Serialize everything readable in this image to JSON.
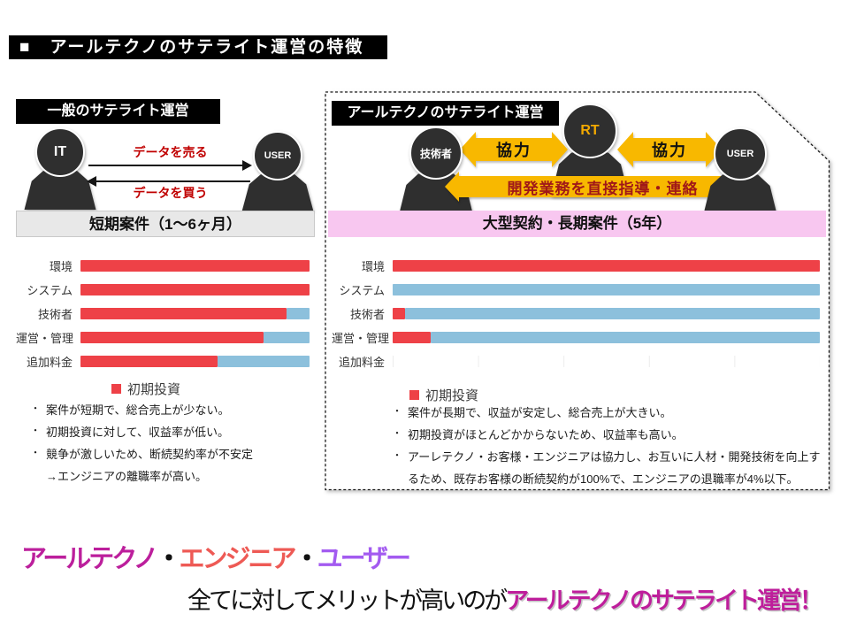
{
  "slide": {
    "title": "■　アールテクノのサテライト運営の特徴"
  },
  "left_panel": {
    "header": "一般のサテライト運営",
    "actor_left": "IT",
    "actor_right": "USER",
    "arrow_sell": "データを売る",
    "arrow_buy": "データを買う",
    "term_banner": "短期案件（1～6ヶ月）",
    "legend": "初期投資",
    "bullets": [
      {
        "marker": "・",
        "text": "案件が短期で、総合売上が少ない。"
      },
      {
        "marker": "・",
        "text": "初期投資に対して、収益率が低い。"
      },
      {
        "marker": "・",
        "text": "競争が激しいため、断続契約率が不安定"
      },
      {
        "marker": "",
        "text": "→エンジニアの離職率が高い。"
      }
    ]
  },
  "right_panel": {
    "header": "アールテクノのサテライト運営",
    "actor_left": "技術者",
    "actor_center": "RT",
    "actor_right": "USER",
    "coop_left": "協力",
    "coop_right": "協力",
    "direct_arrow": "開発業務を直接指導・連絡",
    "term_banner": "大型契約・長期案件（5年）",
    "legend": "初期投資",
    "bullets": [
      {
        "marker": "・",
        "text": "案件が長期で、収益が安定し、総合売上が大きい。"
      },
      {
        "marker": "・",
        "text": "初期投資がほとんどかからないため、収益率も高い。"
      },
      {
        "marker": "・",
        "text": "アーレテクノ・お客様・エンジニアは協力し、お互いに人材・開発技術を向上するため、既存お客様の断続契約が100%で、エンジニアの退職率が4%以下。"
      }
    ]
  },
  "chart_data": [
    {
      "type": "bar",
      "orientation": "horizontal",
      "panel": "一般のサテライト運営（短期案件）",
      "categories": [
        "環境",
        "システム",
        "技術者",
        "運営・管理",
        "追加料金"
      ],
      "series": [
        {
          "name": "初期投資",
          "color": "#EE4147",
          "values": [
            100,
            100,
            90,
            80,
            60
          ]
        },
        {
          "name": "",
          "color": "#8CC0DC",
          "values": [
            0,
            0,
            10,
            20,
            40
          ]
        }
      ],
      "stacked": true,
      "xlim": [
        0,
        100
      ],
      "grid": true,
      "legend": [
        "初期投資"
      ],
      "legend_position": "bottom"
    },
    {
      "type": "bar",
      "orientation": "horizontal",
      "panel": "アールテクノのサテライト運営（大型契約・長期案件）",
      "categories": [
        "環境",
        "システム",
        "技術者",
        "運営・管理",
        "追加料金"
      ],
      "series": [
        {
          "name": "初期投資",
          "color": "#EE4147",
          "values": [
            100,
            0,
            3,
            9,
            0
          ]
        },
        {
          "name": "",
          "color": "#8CC0DC",
          "values": [
            0,
            100,
            97,
            91,
            0
          ]
        }
      ],
      "stacked": true,
      "xlim": [
        0,
        100
      ],
      "grid": true,
      "legend": [
        "初期投資"
      ],
      "legend_position": "bottom"
    }
  ],
  "footer": {
    "line1": [
      {
        "text": "アールテクノ",
        "color": "#BC1F9C"
      },
      {
        "text": "・",
        "color": "#111111"
      },
      {
        "text": "エンジニア",
        "color": "#EE5A55"
      },
      {
        "text": "・",
        "color": "#111111"
      },
      {
        "text": "ユーザー",
        "color": "#A35BF0"
      }
    ],
    "line2": [
      {
        "text": "全てに対してメリットが高いのが",
        "color": "#111111"
      },
      {
        "text": "アールテクノのサテライト運営！",
        "color": "#BE1E9B"
      }
    ]
  },
  "colors": {
    "bar_red": "#EE4147",
    "bar_blue": "#8CC0DC",
    "arrow_yellow": "#F8B800",
    "direct_text_red": "#A01818",
    "pink_banner": "#F8C7F0",
    "gray_banner": "#E8E8E8",
    "data_label_red": "#C00000",
    "rt_label_orange": "#F2A900",
    "person_dark": "#2F2F2F",
    "title_magenta": "#BC1F9C",
    "engineer_red": "#EE5A55",
    "user_purple": "#A35BF0"
  }
}
